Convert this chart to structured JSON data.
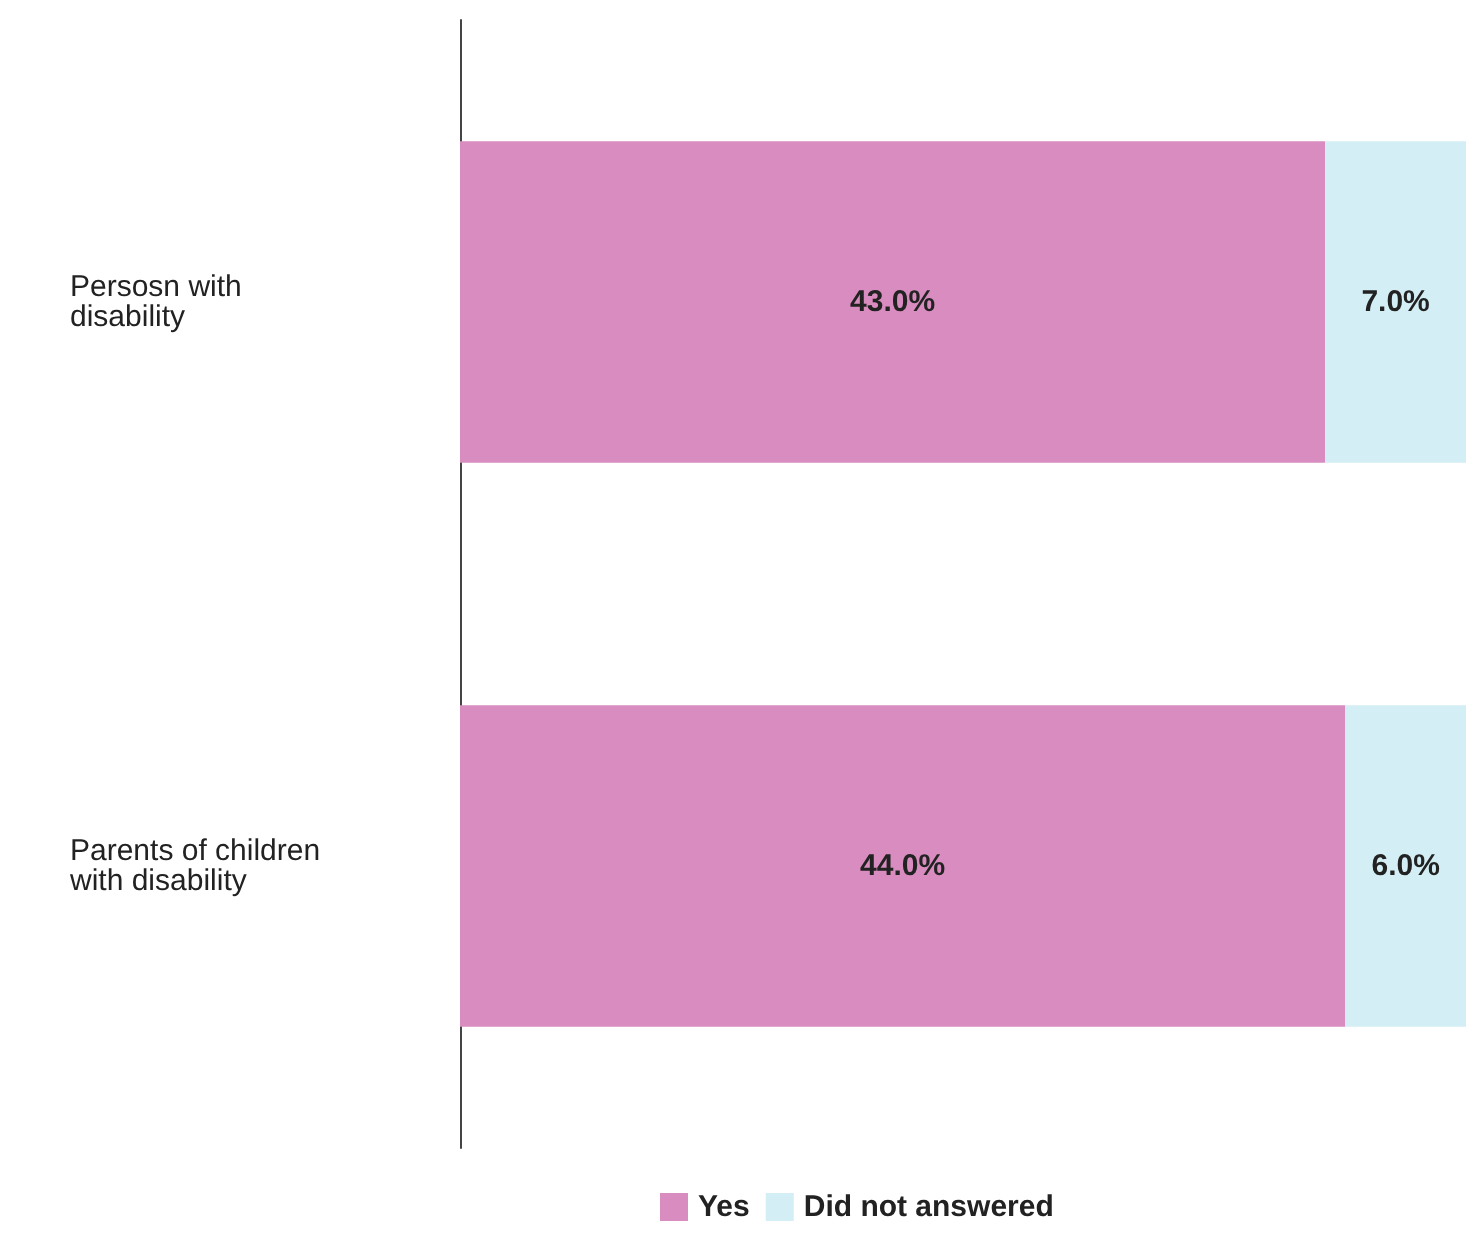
{
  "chart_data": {
    "type": "bar",
    "orientation": "horizontal",
    "stacked": true,
    "categories": [
      "Persosn with disability",
      "Parents of children with disability"
    ],
    "series": [
      {
        "name": "Yes",
        "color": "#d98cbf",
        "values": [
          43.0,
          44.0
        ],
        "value_labels": [
          "43.0%",
          "44.0%"
        ]
      },
      {
        "name": "Did not answered",
        "color": "#d3eef5",
        "values": [
          7.0,
          6.0
        ],
        "value_labels": [
          "7.0%",
          "6.0%"
        ]
      }
    ],
    "legend": "bottom"
  }
}
